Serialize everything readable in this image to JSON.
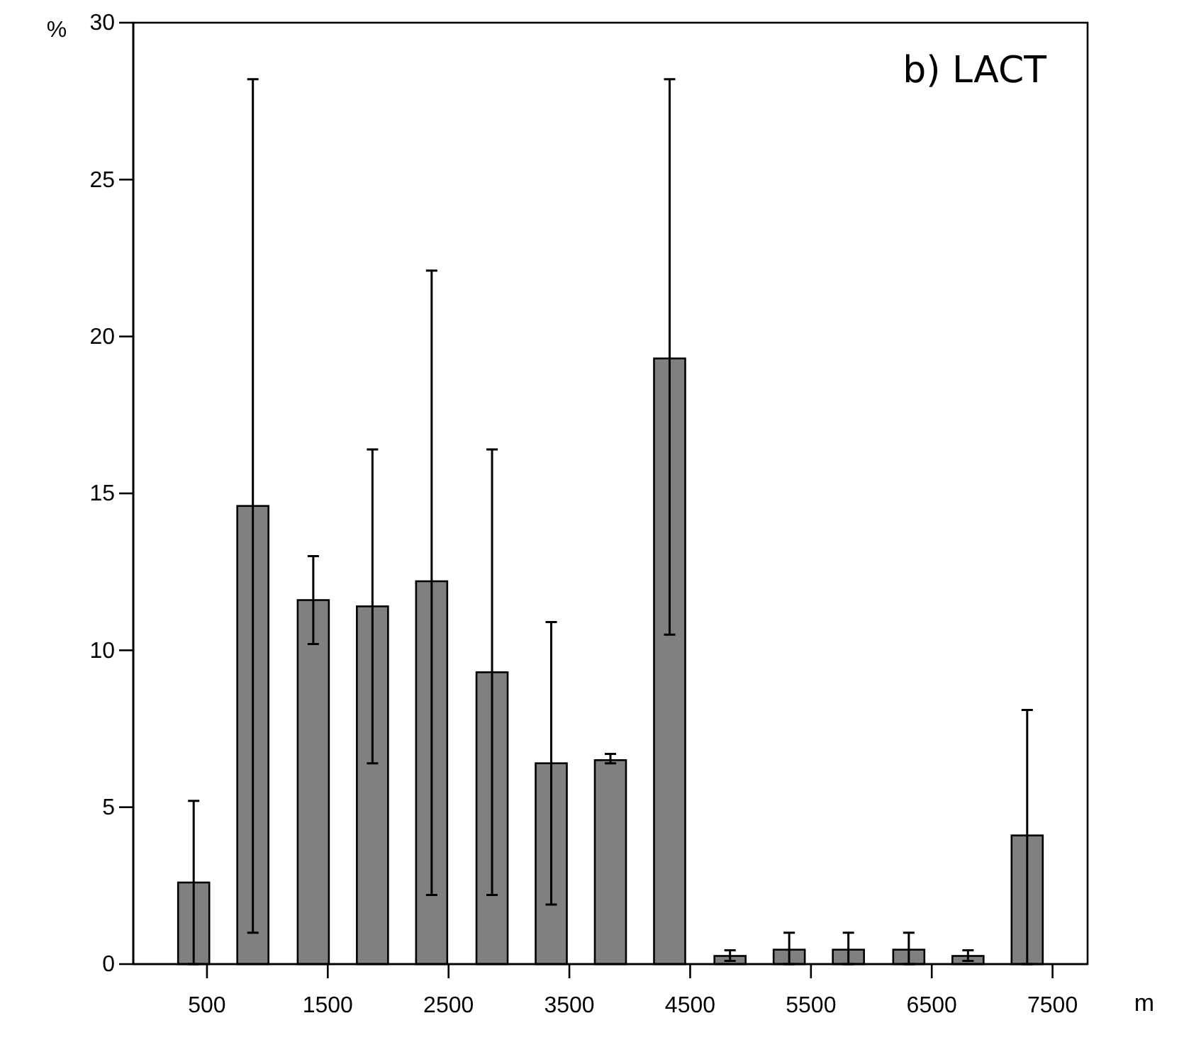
{
  "chart_data": {
    "type": "bar",
    "title": "b) LACT",
    "ylabel": "%",
    "xlabel": "m",
    "x": [
      390,
      880,
      1380,
      1870,
      2360,
      2860,
      3350,
      3840,
      4330,
      4830,
      5320,
      5810,
      6310,
      6800,
      7290
    ],
    "values": [
      2.6,
      14.6,
      11.6,
      11.4,
      12.2,
      9.3,
      6.4,
      6.5,
      19.3,
      0.26,
      0.46,
      0.46,
      0.46,
      0.26,
      4.1
    ],
    "errors": [
      [
        0,
        5.2
      ],
      [
        1.0,
        28.2
      ],
      [
        10.2,
        13.0
      ],
      [
        6.4,
        16.4
      ],
      [
        2.2,
        22.1
      ],
      [
        2.2,
        16.4
      ],
      [
        1.9,
        10.9
      ],
      [
        6.4,
        6.7
      ],
      [
        10.5,
        28.2
      ],
      [
        0.1,
        0.44
      ],
      [
        0,
        1.0
      ],
      [
        0,
        1.0
      ],
      [
        0,
        1.0
      ],
      [
        0.1,
        0.44
      ],
      [
        0,
        8.1
      ]
    ],
    "color": "#808080",
    "xlim": [
      -110,
      7790
    ],
    "xticks": [
      500,
      1500,
      2500,
      3500,
      4500,
      5500,
      6500,
      7500
    ],
    "ylim": [
      0,
      30
    ],
    "yticks": [
      0,
      5,
      10,
      15,
      20,
      25,
      30
    ],
    "grid": false
  }
}
